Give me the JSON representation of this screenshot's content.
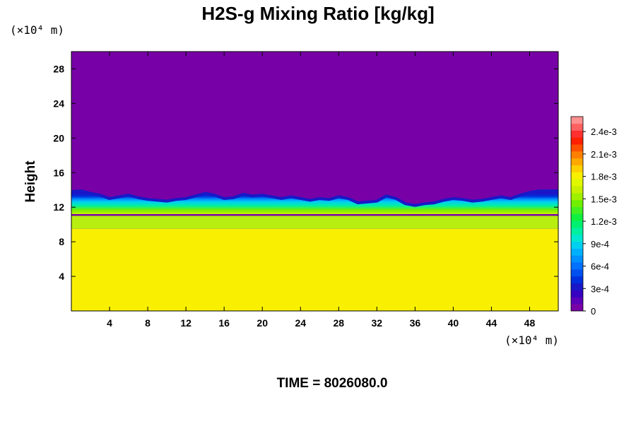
{
  "title": "H2S-g Mixing Ratio [kg/kg]",
  "time_label": "TIME = 8026080.0",
  "chart_data": {
    "type": "heatmap",
    "title": "H2S-g Mixing Ratio [kg/kg]",
    "xlabel": "",
    "ylabel": "Height",
    "x_unit": "(×10⁴ m)",
    "y_unit": "(×10⁴ m)",
    "xlim": [
      0,
      51
    ],
    "ylim": [
      0,
      30
    ],
    "xticks": [
      4,
      8,
      12,
      16,
      20,
      24,
      28,
      32,
      36,
      40,
      44,
      48
    ],
    "yticks": [
      4,
      8,
      12,
      16,
      20,
      24,
      28
    ],
    "colorbar": {
      "min": 0,
      "max": 0.0026,
      "ticks": [
        "0",
        "3e-4",
        "6e-4",
        "9e-4",
        "1.2e-3",
        "1.5e-3",
        "1.8e-3",
        "2.1e-3",
        "2.4e-3"
      ],
      "tick_values": [
        0,
        0.0003,
        0.0006,
        0.0009,
        0.0012,
        0.0015,
        0.0018,
        0.0021,
        0.0024
      ],
      "colors": [
        "#7700a6",
        "#5a00b8",
        "#3500c0",
        "#1818c8",
        "#0030dd",
        "#0050f0",
        "#0070ff",
        "#0090ff",
        "#00b0ff",
        "#00d0f0",
        "#00e8d0",
        "#00f0a0",
        "#00f070",
        "#10f040",
        "#40f020",
        "#70f000",
        "#a0f000",
        "#c8f000",
        "#e0f800",
        "#f8f000",
        "#ffd000",
        "#ffa800",
        "#ff8000",
        "#ff5000",
        "#ff2000",
        "#ff3030",
        "#ff6060",
        "#ff9090"
      ]
    },
    "interface_height_profile": [
      [
        0,
        13.8
      ],
      [
        1,
        13.9
      ],
      [
        2,
        13.6
      ],
      [
        3,
        13.4
      ],
      [
        4,
        13.0
      ],
      [
        5,
        13.2
      ],
      [
        6,
        13.4
      ],
      [
        7,
        13.1
      ],
      [
        8,
        12.9
      ],
      [
        9,
        12.8
      ],
      [
        10,
        12.7
      ],
      [
        11,
        12.9
      ],
      [
        12,
        13.0
      ],
      [
        13,
        13.3
      ],
      [
        14,
        13.6
      ],
      [
        15,
        13.4
      ],
      [
        16,
        13.0
      ],
      [
        17,
        13.1
      ],
      [
        18,
        13.5
      ],
      [
        19,
        13.3
      ],
      [
        20,
        13.4
      ],
      [
        21,
        13.2
      ],
      [
        22,
        13.0
      ],
      [
        23,
        13.2
      ],
      [
        24,
        13.0
      ],
      [
        25,
        12.8
      ],
      [
        26,
        13.0
      ],
      [
        27,
        12.9
      ],
      [
        28,
        13.2
      ],
      [
        29,
        13.0
      ],
      [
        30,
        12.5
      ],
      [
        31,
        12.6
      ],
      [
        32,
        12.7
      ],
      [
        33,
        13.3
      ],
      [
        34,
        13.0
      ],
      [
        35,
        12.4
      ],
      [
        36,
        12.2
      ],
      [
        37,
        12.4
      ],
      [
        38,
        12.5
      ],
      [
        39,
        12.8
      ],
      [
        40,
        13.0
      ],
      [
        41,
        12.9
      ],
      [
        42,
        12.7
      ],
      [
        43,
        12.8
      ],
      [
        44,
        13.0
      ],
      [
        45,
        13.2
      ],
      [
        46,
        13.0
      ],
      [
        47,
        13.4
      ],
      [
        48,
        13.7
      ],
      [
        49,
        13.9
      ],
      [
        50,
        13.9
      ],
      [
        51,
        13.9
      ]
    ],
    "layers": [
      {
        "below_height": 9.5,
        "value": 0.00185
      },
      {
        "below_height": 11.0,
        "value": 0.00175
      },
      {
        "upper_region_value": 0
      }
    ]
  }
}
